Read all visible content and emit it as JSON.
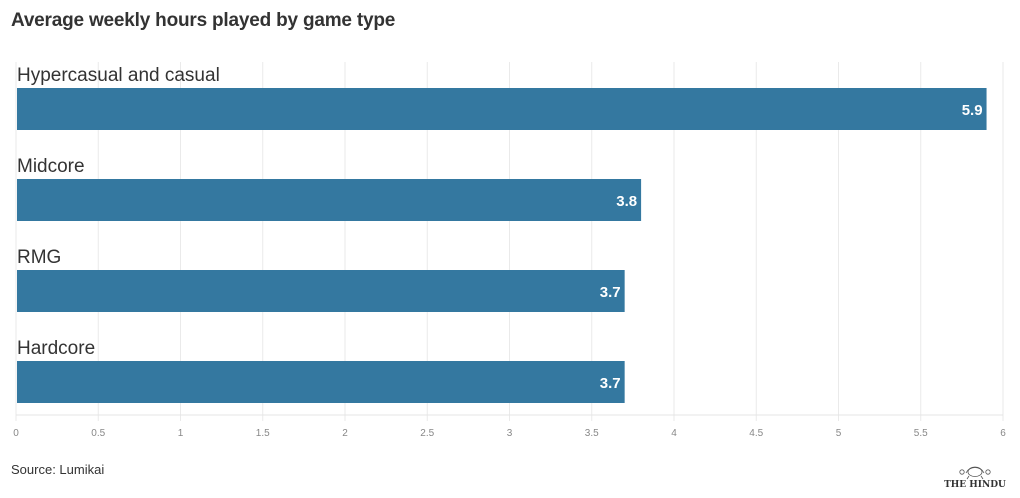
{
  "chart_data": {
    "type": "bar",
    "orientation": "horizontal",
    "title": "Average weekly hours played by game type",
    "categories": [
      "Hypercasual and casual",
      "Midcore",
      "RMG",
      "Hardcore"
    ],
    "values": [
      5.9,
      3.8,
      3.7,
      3.7
    ],
    "value_labels": [
      "5.9",
      "3.8",
      "3.7",
      "3.7"
    ],
    "xlim": [
      0,
      6
    ],
    "x_ticks": [
      "0",
      "0.5",
      "1",
      "1.5",
      "2",
      "2.5",
      "3",
      "3.5",
      "4",
      "4.5",
      "5",
      "5.5",
      "6"
    ],
    "grid": true,
    "legend": "none",
    "bar_color": "#3478a0"
  },
  "footer": {
    "source": "Source: Lumikai",
    "logo_text": "THE HINDU"
  }
}
